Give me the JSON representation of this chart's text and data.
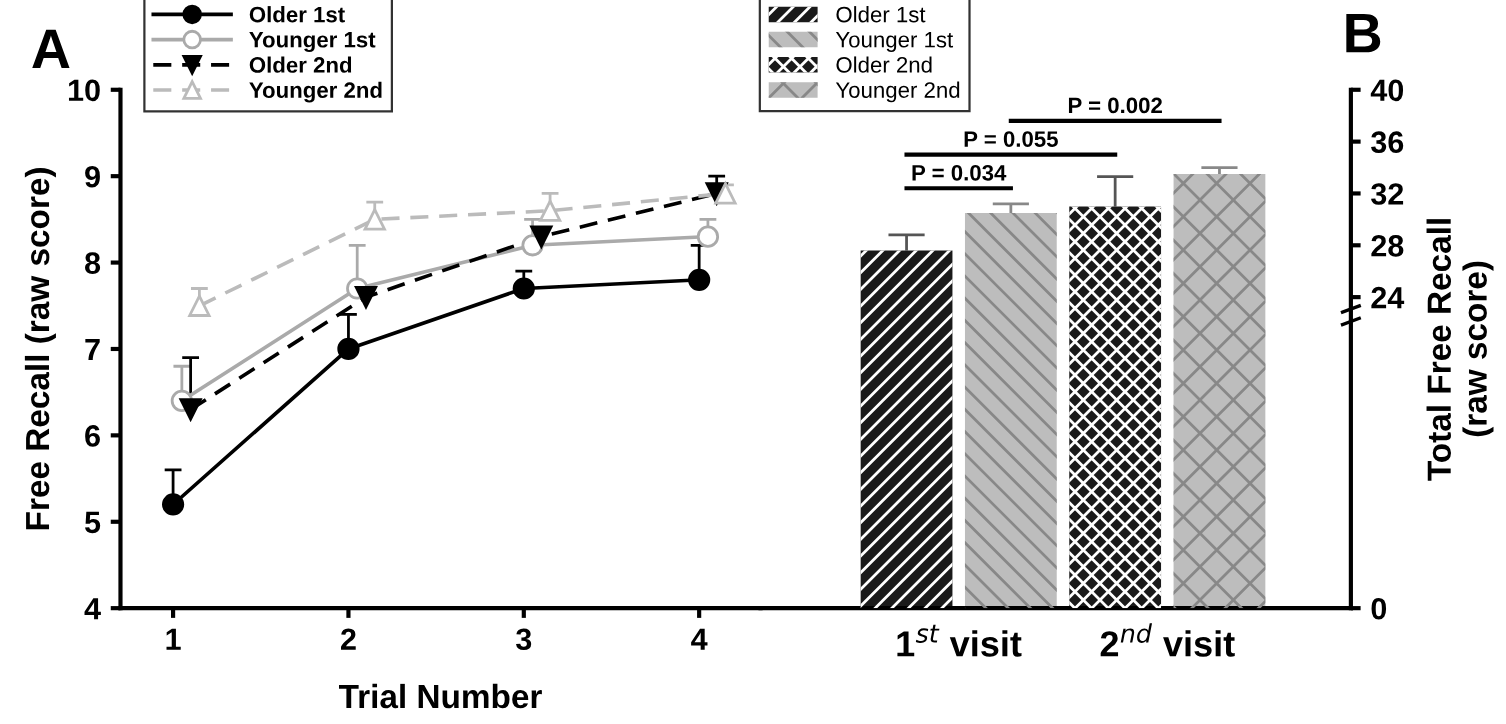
{
  "chart_data": [
    {
      "type": "line",
      "title": "A",
      "xlabel": "Trial Number",
      "ylabel": "Free Recall (raw score)",
      "xlim": [
        0.7,
        4.35
      ],
      "xticks": [
        1,
        2,
        3,
        4
      ],
      "ylim": [
        4,
        10
      ],
      "yticks": [
        4,
        5,
        6,
        7,
        8,
        9,
        10
      ],
      "legend": "top left",
      "grid": false,
      "series": [
        {
          "name": "Older 1st",
          "color": "#000000",
          "marker": "circle",
          "line_style": "solid",
          "x": [
            1,
            2,
            3,
            4
          ],
          "values": [
            5.2,
            7.0,
            7.7,
            7.8
          ],
          "errors": [
            [
              5.2,
              5.6
            ],
            [
              7.0,
              7.4
            ],
            [
              7.7,
              7.9
            ],
            [
              7.8,
              8.2
            ]
          ]
        },
        {
          "name": "Younger 1st",
          "color": "#aaaaaa",
          "marker": "circle",
          "line_style": "solid",
          "x": [
            1.05,
            2.05,
            3.05,
            4.05
          ],
          "values": [
            6.4,
            7.7,
            8.2,
            8.3
          ],
          "errors": [
            [
              6.4,
              6.8
            ],
            [
              7.7,
              8.2
            ],
            [
              8.2,
              8.5
            ],
            [
              8.3,
              8.5
            ]
          ]
        },
        {
          "name": "Older 2nd",
          "color": "#000000",
          "marker": "triangle",
          "line_style": "dashed",
          "x": [
            1.1,
            2.1,
            3.1,
            4.1
          ],
          "values": [
            6.3,
            7.6,
            8.3,
            8.8
          ],
          "errors": [
            [
              6.3,
              6.9
            ],
            null,
            null,
            [
              8.8,
              9.0
            ]
          ]
        },
        {
          "name": "Younger 2nd",
          "color": "#bbbbbb",
          "marker": "triangle",
          "line_style": "dashed",
          "x": [
            1.15,
            2.15,
            3.15,
            4.15
          ],
          "values": [
            7.5,
            8.5,
            8.6,
            8.8
          ],
          "errors": [
            [
              7.5,
              7.7
            ],
            [
              8.5,
              8.7
            ],
            [
              8.6,
              8.8
            ],
            [
              8.8,
              8.9
            ]
          ]
        }
      ]
    },
    {
      "type": "bar",
      "title": "B",
      "y2label": "Total Free Recall\n(raw score)",
      "categories": [
        "1$^{st}$ visit",
        "2$^{nd}$ visit"
      ],
      "y2lim": [
        0,
        40
      ],
      "y2ticks": [
        0,
        24,
        28,
        32,
        36,
        40
      ],
      "legend": "top left",
      "grid": false,
      "series": [
        {
          "name": "Older 1st",
          "color": "#1a1a1a",
          "axis": "y2",
          "values": [
            27.6,
            null
          ],
          "errors": [
            [
              27.6,
              28.8
            ],
            null
          ]
        },
        {
          "name": "Younger 1st",
          "color": "#bdbdbd",
          "axis": "y2",
          "values": [
            30.5,
            null
          ],
          "errors": [
            [
              30.5,
              31.2
            ],
            null
          ]
        },
        {
          "name": "Older 2nd",
          "color": "#1a1a1a",
          "axis": "y2",
          "values": [
            null,
            31.0
          ],
          "errors": [
            null,
            [
              31.0,
              33.3
            ]
          ]
        },
        {
          "name": "Younger 2nd",
          "color": "#bdbdbd",
          "axis": "y2",
          "values": [
            null,
            33.5
          ],
          "errors": [
            null,
            [
              33.5,
              34.0
            ]
          ]
        }
      ],
      "annotations": [
        "P = 0.034",
        "P = 0.055",
        "P = 0.002"
      ]
    }
  ]
}
